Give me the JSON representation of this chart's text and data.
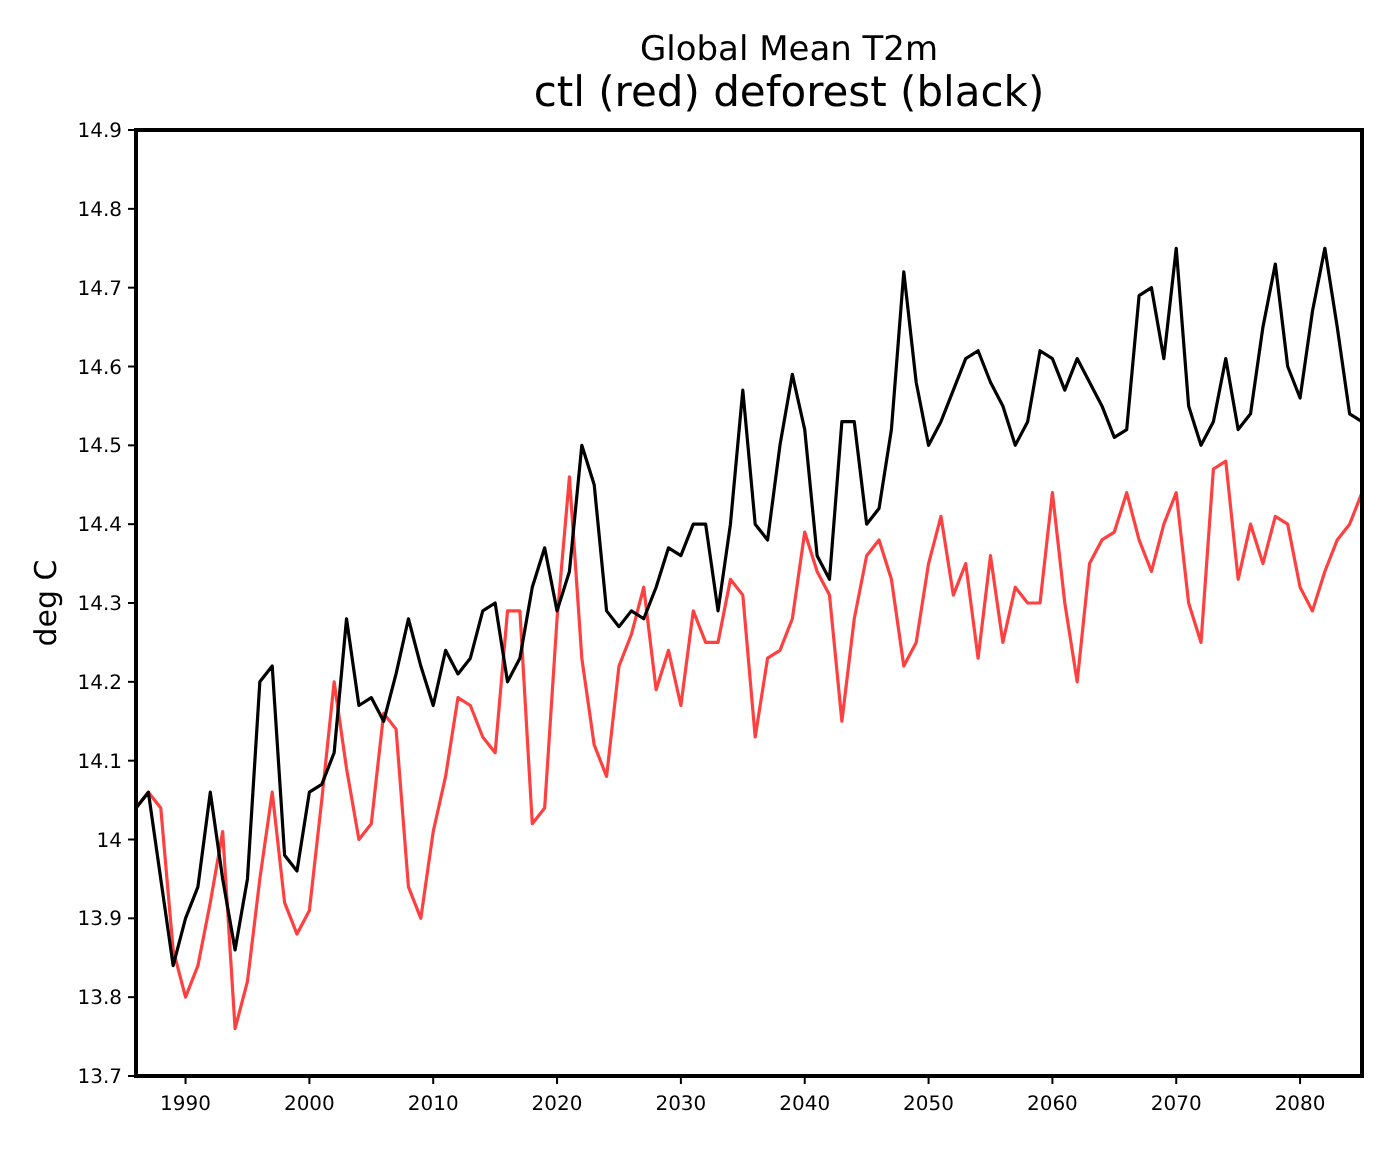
{
  "chart_data": {
    "type": "line",
    "title": "Global Mean T2m",
    "subtitle": "ctl (red) deforest (black)",
    "ylabel": "deg C",
    "x": [
      1986,
      1987,
      1988,
      1989,
      1990,
      1991,
      1992,
      1993,
      1994,
      1995,
      1996,
      1997,
      1998,
      1999,
      2000,
      2001,
      2002,
      2003,
      2004,
      2005,
      2006,
      2007,
      2008,
      2009,
      2010,
      2011,
      2012,
      2013,
      2014,
      2015,
      2016,
      2017,
      2018,
      2019,
      2020,
      2021,
      2022,
      2023,
      2024,
      2025,
      2026,
      2027,
      2028,
      2029,
      2030,
      2031,
      2032,
      2033,
      2034,
      2035,
      2036,
      2037,
      2038,
      2039,
      2040,
      2041,
      2042,
      2043,
      2044,
      2045,
      2046,
      2047,
      2048,
      2049,
      2050,
      2051,
      2052,
      2053,
      2054,
      2055,
      2056,
      2057,
      2058,
      2059,
      2060,
      2061,
      2062,
      2063,
      2064,
      2065,
      2066,
      2067,
      2068,
      2069,
      2070,
      2071,
      2072,
      2073,
      2074,
      2075,
      2076,
      2077,
      2078,
      2079,
      2080,
      2081,
      2082,
      2083,
      2084,
      2085
    ],
    "series": [
      {
        "color": "#ff4040",
        "values": [
          14.04,
          14.06,
          14.04,
          13.86,
          13.8,
          13.84,
          13.92,
          14.01,
          13.76,
          13.82,
          13.95,
          14.06,
          13.92,
          13.88,
          13.91,
          14.05,
          14.2,
          14.09,
          14.0,
          14.02,
          14.16,
          14.14,
          13.94,
          13.9,
          14.01,
          14.08,
          14.18,
          14.17,
          14.13,
          14.11,
          14.29,
          14.29,
          14.02,
          14.04,
          14.28,
          14.46,
          14.23,
          14.12,
          14.08,
          14.22,
          14.26,
          14.32,
          14.19,
          14.24,
          14.17,
          14.29,
          14.25,
          14.25,
          14.33,
          14.31,
          14.13,
          14.23,
          14.24,
          14.28,
          14.39,
          14.34,
          14.31,
          14.15,
          14.28,
          14.36,
          14.38,
          14.33,
          14.22,
          14.25,
          14.35,
          14.41,
          14.31,
          14.35,
          14.23,
          14.36,
          14.25,
          14.32,
          14.3,
          14.3,
          14.44,
          14.3,
          14.2,
          14.35,
          14.38,
          14.39,
          14.44,
          14.38,
          14.34,
          14.4,
          14.44,
          14.3,
          14.25,
          14.47,
          14.48,
          14.33,
          14.4,
          14.35,
          14.41,
          14.4,
          14.32,
          14.29,
          14.34,
          14.38,
          14.4,
          14.44
        ]
      },
      {
        "color": "#000000",
        "values": [
          14.04,
          14.06,
          13.95,
          13.84,
          13.9,
          13.94,
          14.06,
          13.95,
          13.86,
          13.95,
          14.2,
          14.22,
          13.98,
          13.96,
          14.06,
          14.07,
          14.11,
          14.28,
          14.17,
          14.18,
          14.15,
          14.21,
          14.28,
          14.22,
          14.17,
          14.24,
          14.21,
          14.23,
          14.29,
          14.3,
          14.2,
          14.23,
          14.32,
          14.37,
          14.29,
          14.34,
          14.5,
          14.45,
          14.29,
          14.27,
          14.29,
          14.28,
          14.32,
          14.37,
          14.36,
          14.4,
          14.4,
          14.29,
          14.4,
          14.57,
          14.4,
          14.38,
          14.5,
          14.59,
          14.52,
          14.36,
          14.33,
          14.53,
          14.53,
          14.4,
          14.42,
          14.52,
          14.72,
          14.58,
          14.5,
          14.53,
          14.57,
          14.61,
          14.62,
          14.58,
          14.55,
          14.5,
          14.53,
          14.62,
          14.61,
          14.57,
          14.61,
          14.58,
          14.55,
          14.51,
          14.52,
          14.69,
          14.7,
          14.61,
          14.75,
          14.55,
          14.5,
          14.53,
          14.61,
          14.52,
          14.54,
          14.65,
          14.73,
          14.6,
          14.56,
          14.67,
          14.75,
          14.65,
          14.54,
          14.53
        ]
      }
    ],
    "xlim": [
      1986,
      2085
    ],
    "xticks": [
      1990,
      2000,
      2010,
      2020,
      2030,
      2040,
      2050,
      2060,
      2070,
      2080
    ],
    "ylim": [
      13.7,
      14.9
    ],
    "yticks": [
      13.7,
      13.8,
      13.9,
      14,
      14.1,
      14.2,
      14.3,
      14.4,
      14.5,
      14.6,
      14.7,
      14.8,
      14.9
    ],
    "grid": false,
    "marker": "none",
    "line_style": "solid"
  }
}
